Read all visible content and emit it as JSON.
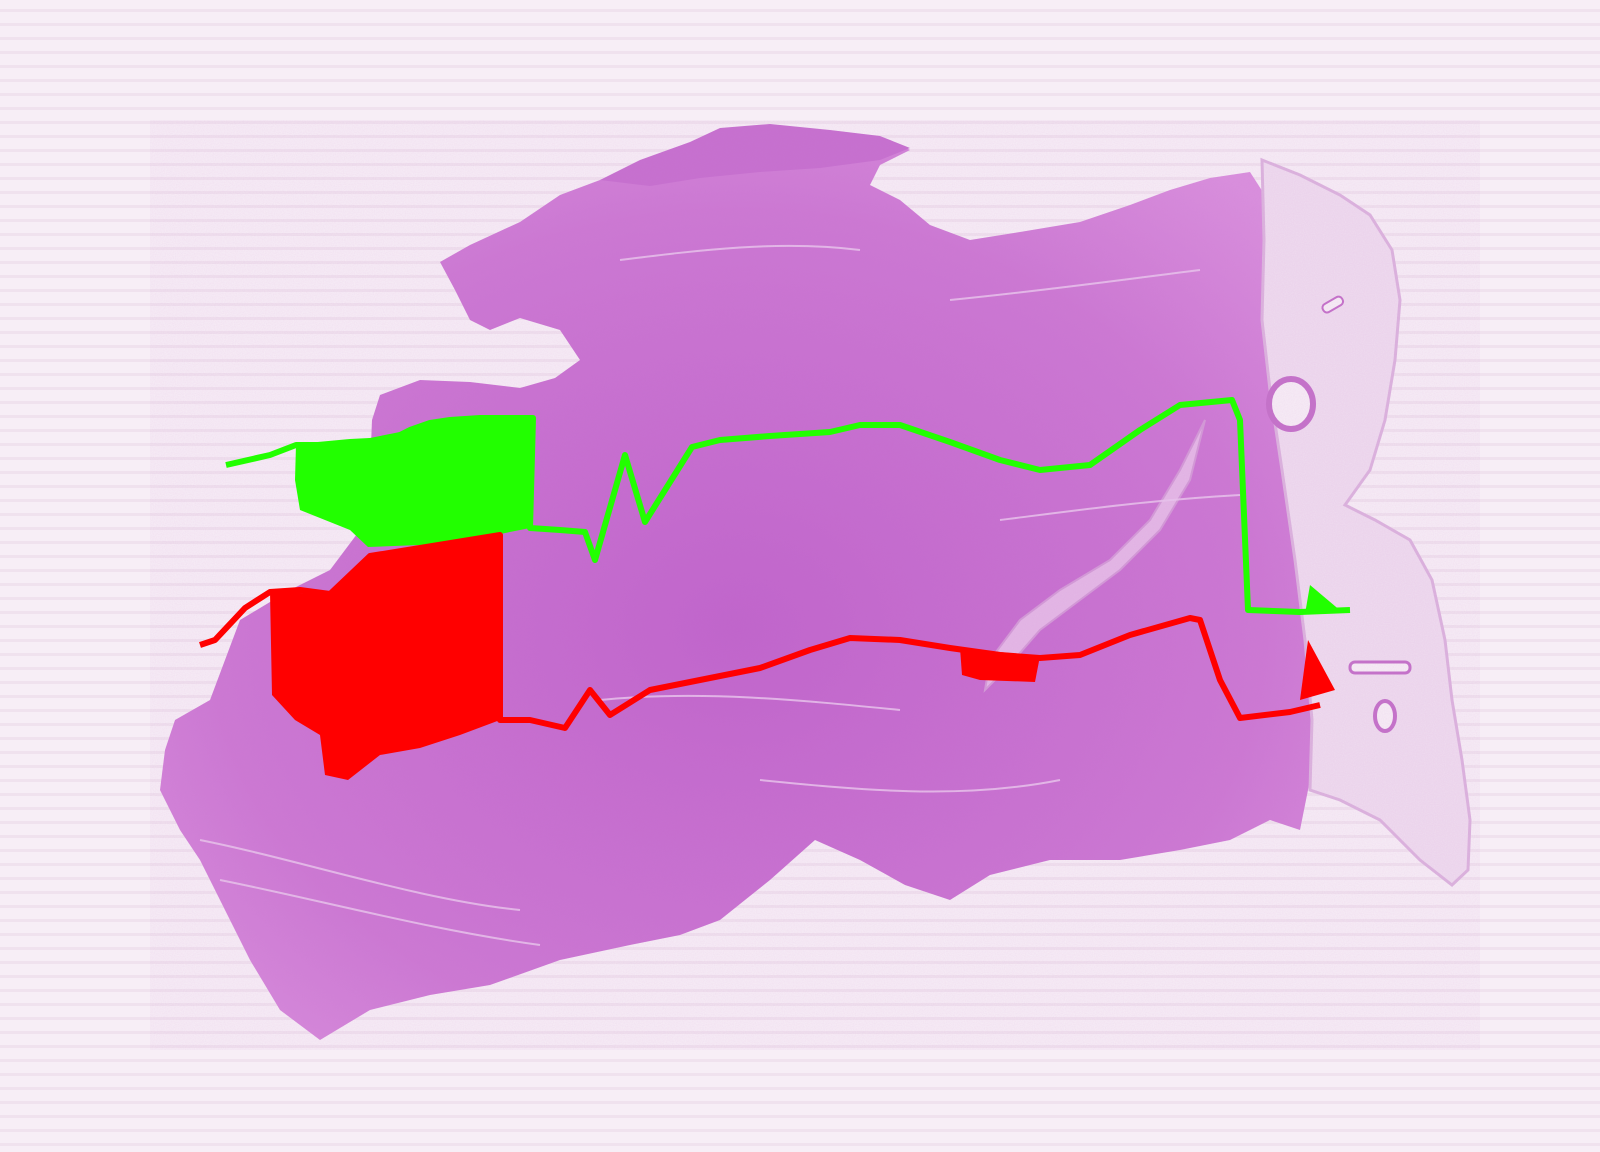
{
  "image": {
    "subject": "",
    "colors": {
      "background": "#f6edf5",
      "background_stripe": "#ead8e8",
      "tissue_main": "#c86fd0",
      "tissue_dark": "#b65bc0",
      "tissue_light": "#e7c2e8",
      "adipose_region": "#efdcef",
      "annotation_upper": "#22ff00",
      "annotation_lower": "#ff0000"
    },
    "annotations": [
      {
        "name": "upper-boundary-line",
        "color": "#22ff00"
      },
      {
        "name": "lower-boundary-line",
        "color": "#ff0000"
      }
    ]
  }
}
